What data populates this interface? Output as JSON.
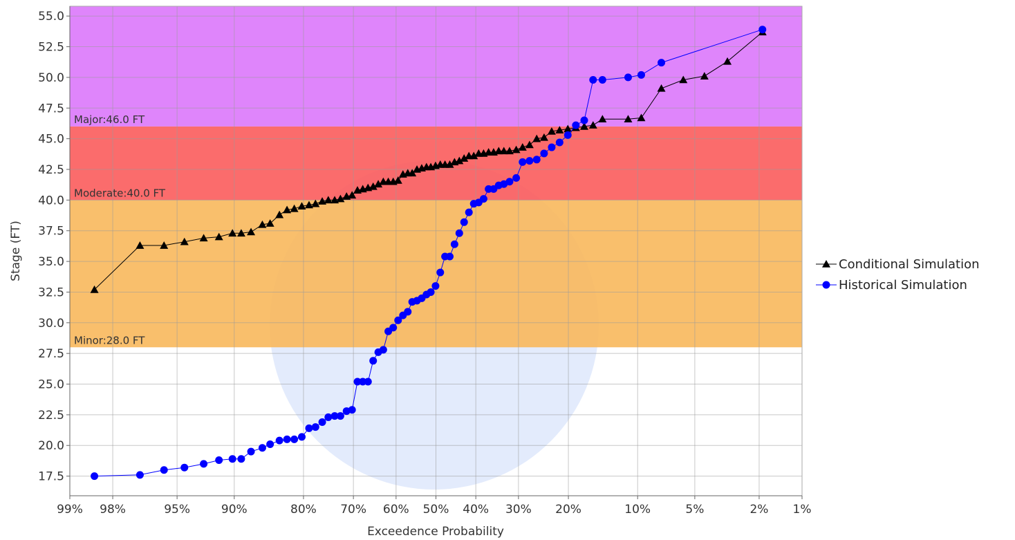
{
  "chart_data": {
    "type": "scatter",
    "title": "",
    "xlabel": "Exceedence Probability",
    "ylabel": "Stage (FT)",
    "x_scale": "normal-probability",
    "x_direction": "decreasing",
    "xlim": [
      99,
      1
    ],
    "ylim": [
      15.9,
      55.8
    ],
    "x_ticks": [
      {
        "value": 99,
        "label": "99%"
      },
      {
        "value": 98,
        "label": "98%"
      },
      {
        "value": 95,
        "label": "95%"
      },
      {
        "value": 90,
        "label": "90%"
      },
      {
        "value": 80,
        "label": "80%"
      },
      {
        "value": 70,
        "label": "70%"
      },
      {
        "value": 60,
        "label": "60%"
      },
      {
        "value": 50,
        "label": "50%"
      },
      {
        "value": 40,
        "label": "40%"
      },
      {
        "value": 30,
        "label": "30%"
      },
      {
        "value": 20,
        "label": "20%"
      },
      {
        "value": 10,
        "label": "10%"
      },
      {
        "value": 5,
        "label": "5%"
      },
      {
        "value": 2,
        "label": "2%"
      },
      {
        "value": 1,
        "label": "1%"
      }
    ],
    "y_ticks": [
      17.5,
      20.0,
      22.5,
      25.0,
      27.5,
      30.0,
      32.5,
      35.0,
      37.5,
      40.0,
      42.5,
      45.0,
      47.5,
      50.0,
      52.5,
      55.0
    ],
    "y_tick_labels": [
      "17.5",
      "20.0",
      "22.5",
      "25.0",
      "27.5",
      "30.0",
      "32.5",
      "35.0",
      "37.5",
      "40.0",
      "42.5",
      "45.0",
      "47.5",
      "50.0",
      "52.5",
      "55.0"
    ],
    "grid": true,
    "legend_position": "right",
    "bands": [
      {
        "label": "Minor:28.0 FT",
        "from": 28.0,
        "to": 40.0,
        "color": "#f8b85c"
      },
      {
        "label": "Moderate:40.0 FT",
        "from": 40.0,
        "to": 46.0,
        "color": "#fb5c5c"
      },
      {
        "label": "Major:46.0 FT",
        "from": 46.0,
        "to": 55.8,
        "color": "#db78fb"
      }
    ],
    "series": [
      {
        "name": "Conditional Simulation",
        "color": "#000000",
        "marker": "triangle",
        "points": [
          [
            98.5,
            32.7
          ],
          [
            97.0,
            36.3
          ],
          [
            95.8,
            36.3
          ],
          [
            94.5,
            36.6
          ],
          [
            93.0,
            36.9
          ],
          [
            91.6,
            37.0
          ],
          [
            90.2,
            37.3
          ],
          [
            89.2,
            37.3
          ],
          [
            88.0,
            37.4
          ],
          [
            86.5,
            38.0
          ],
          [
            85.4,
            38.1
          ],
          [
            84.0,
            38.8
          ],
          [
            82.8,
            39.2
          ],
          [
            81.6,
            39.3
          ],
          [
            80.3,
            39.5
          ],
          [
            79.0,
            39.6
          ],
          [
            77.8,
            39.7
          ],
          [
            76.5,
            39.9
          ],
          [
            75.3,
            40.0
          ],
          [
            74.0,
            40.0
          ],
          [
            72.8,
            40.1
          ],
          [
            71.5,
            40.3
          ],
          [
            70.3,
            40.4
          ],
          [
            69.1,
            40.8
          ],
          [
            67.9,
            40.9
          ],
          [
            66.7,
            41.0
          ],
          [
            65.5,
            41.1
          ],
          [
            64.3,
            41.3
          ],
          [
            63.1,
            41.5
          ],
          [
            61.9,
            41.5
          ],
          [
            60.7,
            41.5
          ],
          [
            59.5,
            41.6
          ],
          [
            58.3,
            42.1
          ],
          [
            57.1,
            42.2
          ],
          [
            56.0,
            42.2
          ],
          [
            54.8,
            42.5
          ],
          [
            53.6,
            42.6
          ],
          [
            52.4,
            42.7
          ],
          [
            51.3,
            42.7
          ],
          [
            50.1,
            42.8
          ],
          [
            48.9,
            42.9
          ],
          [
            47.7,
            42.9
          ],
          [
            46.5,
            42.9
          ],
          [
            45.3,
            43.1
          ],
          [
            44.1,
            43.2
          ],
          [
            42.9,
            43.4
          ],
          [
            41.7,
            43.6
          ],
          [
            40.5,
            43.6
          ],
          [
            39.3,
            43.8
          ],
          [
            38.1,
            43.8
          ],
          [
            36.9,
            43.9
          ],
          [
            35.7,
            43.9
          ],
          [
            34.5,
            44.0
          ],
          [
            33.3,
            44.0
          ],
          [
            32.0,
            44.0
          ],
          [
            30.5,
            44.1
          ],
          [
            29.1,
            44.3
          ],
          [
            27.6,
            44.5
          ],
          [
            26.1,
            45.0
          ],
          [
            24.6,
            45.1
          ],
          [
            23.1,
            45.6
          ],
          [
            21.6,
            45.7
          ],
          [
            20.1,
            45.8
          ],
          [
            18.7,
            45.9
          ],
          [
            17.3,
            46.0
          ],
          [
            15.9,
            46.1
          ],
          [
            14.5,
            46.6
          ],
          [
            11.1,
            46.6
          ],
          [
            9.6,
            46.7
          ],
          [
            7.6,
            49.1
          ],
          [
            5.8,
            49.8
          ],
          [
            4.4,
            50.1
          ],
          [
            3.2,
            51.3
          ],
          [
            1.9,
            53.7
          ]
        ]
      },
      {
        "name": "Historical Simulation",
        "color": "#0000ff",
        "marker": "circle",
        "points": [
          [
            98.5,
            17.5
          ],
          [
            97.0,
            17.6
          ],
          [
            95.8,
            18.0
          ],
          [
            94.5,
            18.2
          ],
          [
            93.0,
            18.5
          ],
          [
            91.6,
            18.8
          ],
          [
            90.2,
            18.9
          ],
          [
            89.2,
            18.9
          ],
          [
            88.0,
            19.5
          ],
          [
            86.5,
            19.8
          ],
          [
            85.4,
            20.1
          ],
          [
            84.0,
            20.4
          ],
          [
            82.8,
            20.5
          ],
          [
            81.6,
            20.5
          ],
          [
            80.3,
            20.7
          ],
          [
            79.0,
            21.4
          ],
          [
            77.8,
            21.5
          ],
          [
            76.5,
            21.9
          ],
          [
            75.3,
            22.3
          ],
          [
            74.0,
            22.4
          ],
          [
            72.8,
            22.4
          ],
          [
            71.5,
            22.8
          ],
          [
            70.3,
            22.9
          ],
          [
            69.1,
            25.2
          ],
          [
            67.9,
            25.2
          ],
          [
            66.7,
            25.2
          ],
          [
            65.5,
            26.9
          ],
          [
            64.3,
            27.6
          ],
          [
            63.1,
            27.8
          ],
          [
            61.9,
            29.3
          ],
          [
            60.7,
            29.6
          ],
          [
            59.5,
            30.2
          ],
          [
            58.3,
            30.6
          ],
          [
            57.1,
            30.9
          ],
          [
            56.0,
            31.7
          ],
          [
            54.8,
            31.8
          ],
          [
            53.6,
            32.0
          ],
          [
            52.4,
            32.3
          ],
          [
            51.3,
            32.5
          ],
          [
            50.1,
            33.0
          ],
          [
            48.9,
            34.1
          ],
          [
            47.7,
            35.4
          ],
          [
            46.5,
            35.4
          ],
          [
            45.3,
            36.4
          ],
          [
            44.1,
            37.3
          ],
          [
            42.9,
            38.2
          ],
          [
            41.7,
            39.0
          ],
          [
            40.5,
            39.7
          ],
          [
            39.3,
            39.8
          ],
          [
            38.1,
            40.1
          ],
          [
            36.9,
            40.9
          ],
          [
            35.7,
            40.9
          ],
          [
            34.5,
            41.2
          ],
          [
            33.3,
            41.3
          ],
          [
            32.0,
            41.5
          ],
          [
            30.5,
            41.8
          ],
          [
            29.1,
            43.1
          ],
          [
            27.6,
            43.2
          ],
          [
            26.1,
            43.3
          ],
          [
            24.6,
            43.8
          ],
          [
            23.1,
            44.3
          ],
          [
            21.6,
            44.7
          ],
          [
            20.1,
            45.3
          ],
          [
            18.7,
            46.1
          ],
          [
            17.3,
            46.5
          ],
          [
            15.9,
            49.8
          ],
          [
            14.5,
            49.8
          ],
          [
            11.1,
            50.0
          ],
          [
            9.6,
            50.2
          ],
          [
            7.6,
            51.2
          ],
          [
            1.9,
            53.9
          ]
        ]
      }
    ]
  }
}
